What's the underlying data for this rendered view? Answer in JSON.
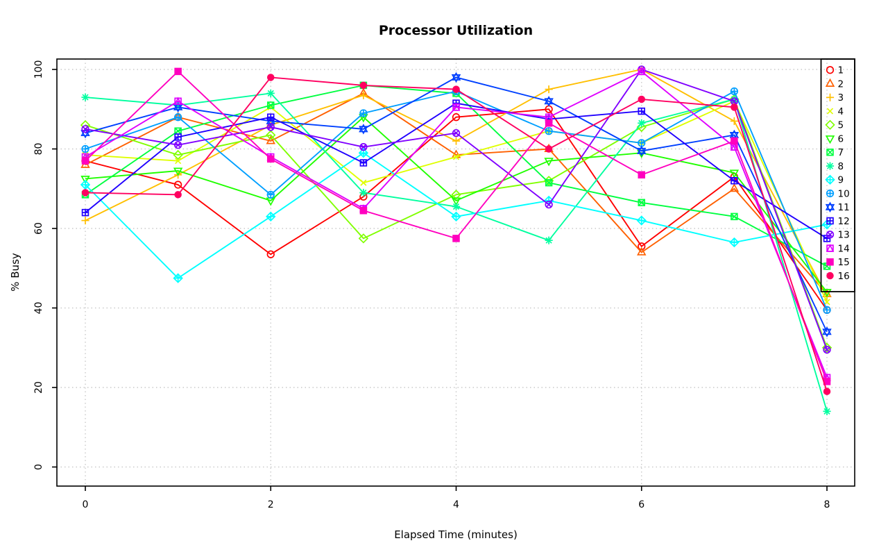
{
  "chart_data": {
    "type": "line",
    "title": "Processor Utilization",
    "xlabel": "Elapsed Time (minutes)",
    "ylabel": "% Busy",
    "x": [
      0,
      1,
      2,
      3,
      4,
      5,
      6,
      7,
      8
    ],
    "x_ticks": [
      0,
      2,
      4,
      6,
      8
    ],
    "y_ticks": [
      0,
      20,
      40,
      60,
      80,
      100
    ],
    "xlim": [
      0,
      8
    ],
    "ylim": [
      0,
      102.6
    ],
    "grid": true,
    "grid_style": "dotted",
    "grid_color": "#c9c9c9",
    "axis_color": "#000000",
    "legend_position": "top-right",
    "legend_labels": [
      "1",
      "2",
      "3",
      "4",
      "5",
      "6",
      "7",
      "8",
      "9",
      "10",
      "11",
      "12",
      "13",
      "14",
      "15",
      "16"
    ],
    "series": [
      {
        "name": "1",
        "color": "#FF0000",
        "pch": 1,
        "values": [
          77,
          71,
          53.5,
          68,
          88,
          90,
          55.5,
          73,
          39.5
        ]
      },
      {
        "name": "2",
        "color": "#FF6000",
        "pch": 2,
        "values": [
          76,
          88,
          82,
          94,
          78.5,
          80,
          54,
          70,
          43.5
        ]
      },
      {
        "name": "3",
        "color": "#FFBF00",
        "pch": 3,
        "values": [
          62,
          73.5,
          86,
          93.5,
          82,
          95,
          100,
          87,
          43
        ]
      },
      {
        "name": "4",
        "color": "#DFFF00",
        "pch": 4,
        "values": [
          78.5,
          77,
          90.5,
          71.5,
          78,
          84.5,
          81.5,
          92,
          41.5
        ]
      },
      {
        "name": "5",
        "color": "#80FF00",
        "pch": 5,
        "values": [
          86,
          78.5,
          83.5,
          57.5,
          68.5,
          72,
          85.5,
          92.5,
          30
        ]
      },
      {
        "name": "6",
        "color": "#20FF00",
        "pch": 6,
        "values": [
          72.5,
          74.5,
          67,
          88,
          67,
          77,
          79,
          74,
          44
        ]
      },
      {
        "name": "7",
        "color": "#00FF40",
        "pch": 7,
        "values": [
          68.5,
          84.5,
          91,
          96,
          94,
          71.5,
          66.5,
          63,
          50.5
        ]
      },
      {
        "name": "8",
        "color": "#00FF9F",
        "pch": 8,
        "values": [
          93,
          91,
          94,
          69,
          65.5,
          57,
          86.5,
          92.5,
          14
        ]
      },
      {
        "name": "9",
        "color": "#00FFFF",
        "pch": 9,
        "values": [
          71,
          47.5,
          63,
          79,
          63,
          67,
          62,
          56.5,
          61
        ]
      },
      {
        "name": "10",
        "color": "#009FFF",
        "pch": 10,
        "values": [
          80,
          88,
          68.5,
          89,
          94.5,
          84.5,
          81.5,
          94.5,
          39.5
        ]
      },
      {
        "name": "11",
        "color": "#0040FF",
        "pch": 11,
        "values": [
          84,
          90.5,
          87,
          85,
          98,
          92,
          79.5,
          83.5,
          34
        ]
      },
      {
        "name": "12",
        "color": "#2000FF",
        "pch": 12,
        "values": [
          64,
          83,
          88,
          76.5,
          91.5,
          87.5,
          89.5,
          72,
          57.5
        ]
      },
      {
        "name": "13",
        "color": "#8000FF",
        "pch": 13,
        "values": [
          85,
          81,
          85.5,
          80.5,
          84,
          66,
          100,
          92,
          29.5
        ]
      },
      {
        "name": "14",
        "color": "#DF00FF",
        "pch": 14,
        "values": [
          78,
          92,
          78,
          65,
          90.5,
          88,
          99.5,
          80.5,
          22.5
        ]
      },
      {
        "name": "15",
        "color": "#FF00BF",
        "pch": 15,
        "values": [
          77,
          99.5,
          77.5,
          64.5,
          57.5,
          86.5,
          73.5,
          82,
          21.5
        ]
      },
      {
        "name": "16",
        "color": "#FF0060",
        "pch": 16,
        "values": [
          69,
          68.5,
          98,
          96,
          95,
          80,
          92.5,
          90.5,
          19
        ]
      }
    ]
  }
}
